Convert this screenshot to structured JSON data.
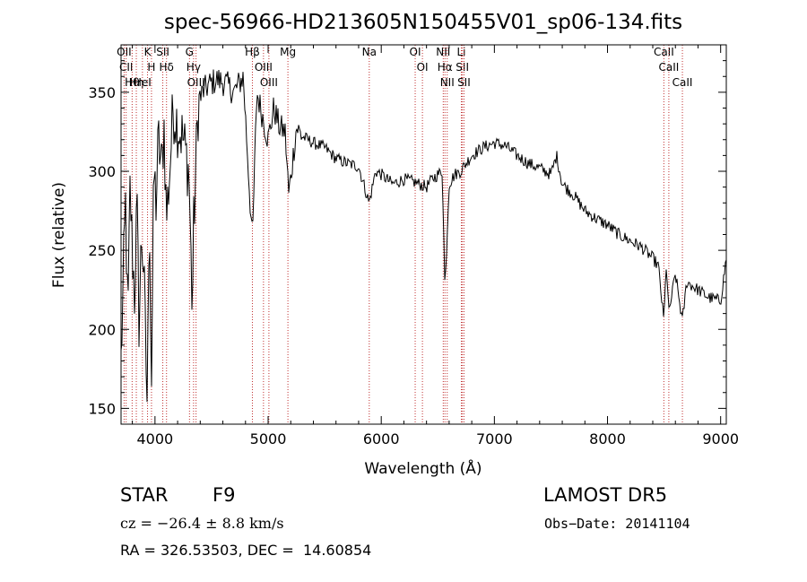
{
  "chart_data": {
    "type": "line",
    "title": "spec-56966-HD213605N150455V01_sp06-134.fits",
    "xlabel": "Wavelength (Å)",
    "ylabel": "Flux (relative)",
    "xlim": [
      3700,
      9050
    ],
    "ylim": [
      140,
      380
    ],
    "x_ticks": [
      4000,
      5000,
      6000,
      7000,
      8000,
      9000
    ],
    "y_ticks": [
      150,
      200,
      250,
      300,
      350
    ],
    "grid": false,
    "series": [
      {
        "x": [
          3700,
          3720,
          3740,
          3760,
          3780,
          3800,
          3820,
          3840,
          3860,
          3880,
          3900,
          3920,
          3933,
          3950,
          3968,
          3990,
          4010,
          4030,
          4060,
          4080,
          4101,
          4130,
          4160,
          4200,
          4250,
          4300,
          4330,
          4340,
          4380,
          4420,
          4480,
          4550,
          4620,
          4700,
          4780,
          4861,
          4900,
          4950,
          5000,
          5050,
          5100,
          5150,
          5183,
          5250,
          5300,
          5400,
          5500,
          5600,
          5700,
          5800,
          5893,
          5950,
          6000,
          6100,
          6200,
          6300,
          6400,
          6450,
          6500,
          6540,
          6563,
          6600,
          6650,
          6700,
          6800,
          6900,
          7000,
          7100,
          7200,
          7300,
          7400,
          7500,
          7550,
          7600,
          7700,
          7800,
          7900,
          8000,
          8100,
          8200,
          8300,
          8400,
          8450,
          8498,
          8520,
          8542,
          8600,
          8662,
          8700,
          8800,
          8900,
          9000,
          9050
        ],
        "values": [
          180,
          230,
          280,
          200,
          290,
          250,
          220,
          280,
          200,
          260,
          240,
          180,
          150,
          290,
          160,
          300,
          280,
          320,
          300,
          330,
          270,
          300,
          340,
          330,
          320,
          300,
          210,
          260,
          340,
          350,
          355,
          358,
          356,
          350,
          360,
          255,
          350,
          335,
          320,
          340,
          328,
          325,
          285,
          328,
          322,
          318,
          315,
          308,
          305,
          303,
          280,
          300,
          298,
          292,
          295,
          293,
          290,
          295,
          298,
          300,
          225,
          292,
          298,
          300,
          310,
          315,
          318,
          316,
          310,
          305,
          302,
          298,
          310,
          292,
          285,
          275,
          270,
          266,
          260,
          256,
          252,
          245,
          240,
          205,
          242,
          210,
          235,
          205,
          230,
          225,
          220,
          218,
          245
        ]
      }
    ],
    "line_markers": [
      {
        "label": "Hθ",
        "x": 3798
      },
      {
        "label": "OII",
        "x": 3727
      },
      {
        "label": "CII",
        "x": 3745
      },
      {
        "label": "Hη",
        "x": 3835
      },
      {
        "label": "HeI",
        "x": 3889
      },
      {
        "label": "K",
        "x": 3934
      },
      {
        "label": "H",
        "x": 3969
      },
      {
        "label": "Hδ",
        "x": 4102
      },
      {
        "label": "SII",
        "x": 4069
      },
      {
        "label": "OIII",
        "x": 4363
      },
      {
        "label": "Hγ",
        "x": 4341
      },
      {
        "label": "G",
        "x": 4305
      },
      {
        "label": "OIII",
        "x": 5007
      },
      {
        "label": "OIII",
        "x": 4959
      },
      {
        "label": "Hβ",
        "x": 4861
      },
      {
        "label": "Mg",
        "x": 5175
      },
      {
        "label": "Na",
        "x": 5894
      },
      {
        "label": "OI",
        "x": 6300
      },
      {
        "label": "OI",
        "x": 6364
      },
      {
        "label": "Hα",
        "x": 6563
      },
      {
        "label": "NII",
        "x": 6548
      },
      {
        "label": "NII",
        "x": 6583
      },
      {
        "label": "SII",
        "x": 6717
      },
      {
        "label": "Li",
        "x": 6708
      },
      {
        "label": "SII",
        "x": 6731
      },
      {
        "label": "CaII",
        "x": 8542
      },
      {
        "label": "CaII",
        "x": 8498
      },
      {
        "label": "CaII",
        "x": 8662
      }
    ]
  },
  "info": {
    "object_type": "STAR",
    "subclass": "F9",
    "survey": "LAMOST DR5",
    "cz": "cz = −26.4 ± 8.8 km/s",
    "obs_date": "Obs−Date: 20141104",
    "coords": "RA = 326.53503, DEC =  14.60854"
  }
}
